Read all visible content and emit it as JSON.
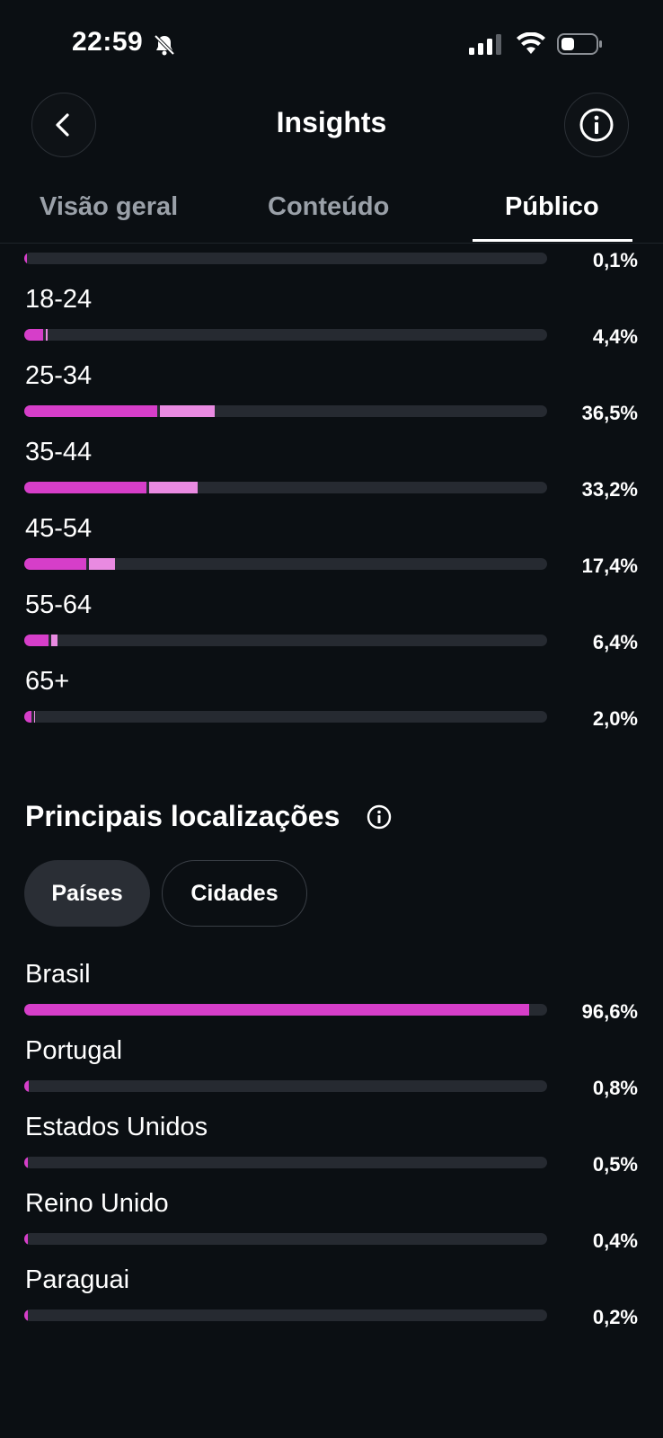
{
  "status_bar": {
    "time": "22:59"
  },
  "header": {
    "title": "Insights"
  },
  "tabs": [
    {
      "label": "Visão geral",
      "active": false
    },
    {
      "label": "Conteúdo",
      "active": false
    },
    {
      "label": "Público",
      "active": true
    }
  ],
  "age_ranges": [
    {
      "label": "",
      "percent": "0,1%",
      "share": 0.1,
      "women_share": 0.05
    },
    {
      "label": "18-24",
      "percent": "4,4%",
      "share": 4.4,
      "women_share": 3.6
    },
    {
      "label": "25-34",
      "percent": "36,5%",
      "share": 36.5,
      "women_share": 25.5
    },
    {
      "label": "35-44",
      "percent": "33,2%",
      "share": 33.2,
      "women_share": 23.3
    },
    {
      "label": "45-54",
      "percent": "17,4%",
      "share": 17.4,
      "women_share": 11.8
    },
    {
      "label": "55-64",
      "percent": "6,4%",
      "share": 6.4,
      "women_share": 4.6
    },
    {
      "label": "65+",
      "percent": "2,0%",
      "share": 2.0,
      "women_share": 1.4
    }
  ],
  "locations": {
    "title": "Principais localizações",
    "filters": [
      {
        "label": "Países",
        "selected": true
      },
      {
        "label": "Cidades",
        "selected": false
      }
    ],
    "items": [
      {
        "label": "Brasil",
        "percent": "96,6%",
        "share": 96.6
      },
      {
        "label": "Portugal",
        "percent": "0,8%",
        "share": 0.8
      },
      {
        "label": "Estados Unidos",
        "percent": "0,5%",
        "share": 0.5
      },
      {
        "label": "Reino Unido",
        "percent": "0,4%",
        "share": 0.4
      },
      {
        "label": "Paraguai",
        "percent": "0,2%",
        "share": 0.2
      }
    ]
  },
  "colors": {
    "background": "#0b0f13",
    "bar_primary": "#d63ec9",
    "bar_secondary": "#e98ae1",
    "track": "#262a31"
  },
  "icons": [
    "bell-slash-icon",
    "signal-icon",
    "wifi-icon",
    "battery-icon",
    "back-arrow-icon",
    "info-icon"
  ]
}
